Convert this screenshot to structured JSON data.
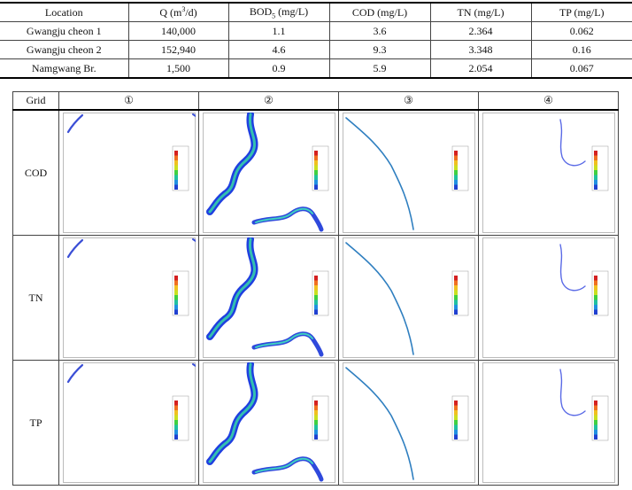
{
  "table1": {
    "header": [
      [
        "Location"
      ],
      [
        "Q (m",
        "3",
        "/d)"
      ],
      [
        "BOD",
        "5",
        " (mg/L)"
      ],
      [
        "COD (mg/L)"
      ],
      [
        "TN (mg/L)"
      ],
      [
        "TP (mg/L)"
      ]
    ],
    "rows": [
      [
        "Gwangju cheon 1",
        "140,000",
        "1.1",
        "3.6",
        "2.364",
        "0.062"
      ],
      [
        "Gwangju cheon 2",
        "152,940",
        "4.6",
        "9.3",
        "3.348",
        "0.16"
      ],
      [
        "Namgwang Br.",
        "1,500",
        "0.9",
        "5.9",
        "2.054",
        "0.067"
      ]
    ]
  },
  "table2": {
    "header": [
      "Grid",
      "①",
      "②",
      "③",
      "④"
    ],
    "rows": [
      "COD",
      "TN",
      "TP"
    ]
  }
}
